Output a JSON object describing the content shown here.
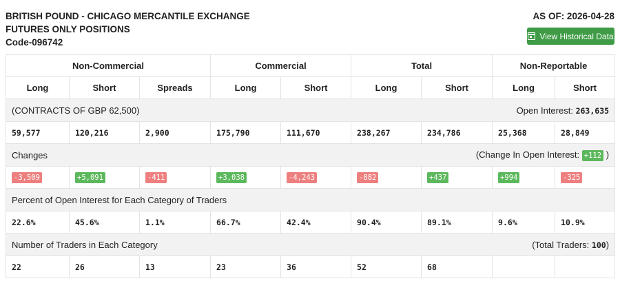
{
  "header": {
    "title_line1": "BRITISH POUND - CHICAGO MERCANTILE EXCHANGE",
    "title_line2": "FUTURES ONLY POSITIONS",
    "code": "Code-096742",
    "as_of": "AS OF: 2026-04-28",
    "historical_button": "View Historical Data"
  },
  "groups": [
    "Non-Commercial",
    "Commercial",
    "Total",
    "Non-Reportable"
  ],
  "columns": [
    "Long",
    "Short",
    "Spreads",
    "Long",
    "Short",
    "Long",
    "Short",
    "Long",
    "Short"
  ],
  "contracts": {
    "label": "(CONTRACTS OF GBP 62,500)",
    "open_interest_label": "Open Interest:",
    "open_interest_value": "263,635",
    "values": [
      "59,577",
      "120,216",
      "2,900",
      "175,790",
      "111,670",
      "238,267",
      "234,786",
      "25,368",
      "28,849"
    ]
  },
  "changes": {
    "label": "Changes",
    "change_oi_prefix": "(Change In Open Interest:",
    "change_oi_value": "+112",
    "change_oi_suffix": ")",
    "values": [
      "-3,509",
      "+5,091",
      "-411",
      "+3,038",
      "-4,243",
      "-882",
      "+437",
      "+994",
      "-325"
    ],
    "colors": {
      "negative": "#ee7f7f",
      "positive": "#5cb85c"
    }
  },
  "percent": {
    "label": "Percent of Open Interest for Each Category of Traders",
    "values": [
      "22.6%",
      "45.6%",
      "1.1%",
      "66.7%",
      "42.4%",
      "90.4%",
      "89.1%",
      "9.6%",
      "10.9%"
    ]
  },
  "traders": {
    "label": "Number of Traders in Each Category",
    "total_prefix": "(Total Traders:",
    "total_value": "100",
    "total_suffix": ")",
    "values": [
      "22",
      "26",
      "13",
      "23",
      "36",
      "52",
      "68",
      "",
      ""
    ]
  }
}
